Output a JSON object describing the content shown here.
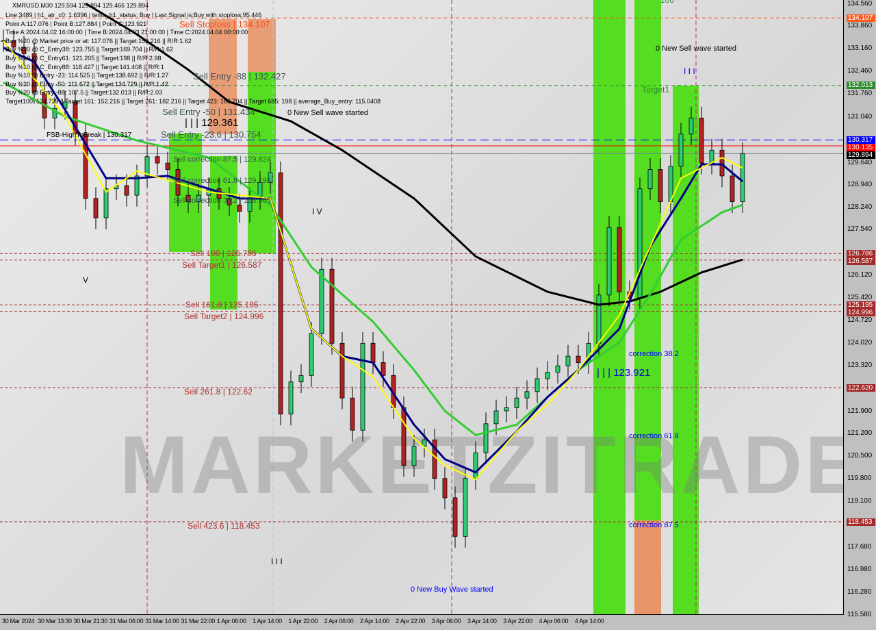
{
  "header": {
    "title": "XMRUSD,M30  129.594 129.894 129.466 129.894",
    "lines": [
      "Line:3489 | h1_atr_c0: 1.6396 | tema_h1_status: Buy | Last Signal is:Buy with stoploss:95.446",
      "Point A:117.076 | Point B:127.884 | Point C:123.921",
      "Time A:2024.04.02 16:00:00 | Time B:2024.04.03 21:00:00 | Time C:2024.04.04 00:00:00",
      "Buy %20 @ Market price or at: 117.076 || Target:152.216 || R/R:1.62",
      "Buy %10 @ C_Entry38: 123.755 || Target:169.704 || R/R:1.62",
      "Buy %10 @ C_Entry61: 121.205 || Target:198 || R/R:2.98",
      "Buy %10 @ C_Entry88: 118.427 || Target:141.408 || R/R:1",
      "Buy %10 @ Entry -23: 114.525 || Target:138.692 || R/R:1.27",
      "Buy %20 @ Entry -50: 111.672 || Target:134.729 || R/R:1.42",
      "Buy %20 @ Entry -88: 107.5 || Target:132.013 || R/R:2.03",
      "Target100: 134.729 || Target 161: 152.216 || Target 261: 182.216 || Target 423: 169.704 || Target 685: 198 || average_Buy_entry: 115.0408"
    ]
  },
  "annotations": {
    "sell_stoploss": "Sell Stoploss | 134.107",
    "sell_entry_88": "Sell Entry -88 | 132.427",
    "sell_entry_50": "Sell Entry -50 | 131.434",
    "sell_entry_23": "Sell Entry -23.6 | 130.754",
    "point_129": "| | | 129.361",
    "fsb": "FSB-HighToBreak | 130.317",
    "sell_corr_875": "Sell correction 87.5 | 129.824",
    "sell_corr_618": "Sell correction 61.8 | 129.193",
    "sell_corr_382": "Sell correction 38.2 | 128.565",
    "sell_100": "Sell 100 | 126.786",
    "sell_target1": "Sell Target1 | 126.587",
    "sell_1618": "Sell 161.8 | 125.195",
    "sell_target2": "Sell Target2 | 124.996",
    "sell_2618": "Sell 261.8 | 122.62",
    "sell_4236": "Sell 423.6 | 118.453",
    "new_sell_left": "0 New Sell wave started",
    "new_sell_right": "0 New Sell wave started",
    "new_buy": "0 New Buy Wave started",
    "target1": "Target1",
    "t100": "100",
    "point_123": "| | | 123.921",
    "corr_382": "correction 38.2",
    "corr_618": "correction 61.8",
    "corr_875": "correction 87.5",
    "wave_iv": "I V",
    "wave_v": "V",
    "wave_iii": "I I I",
    "wave_iii_b": "I I I",
    "watermark": "MARKETZITRADE"
  },
  "price_axis": {
    "ticks": [
      "134.560",
      "133.860",
      "133.160",
      "132.460",
      "131.760",
      "131.040",
      "129.640",
      "128.940",
      "128.240",
      "127.540",
      "126.120",
      "125.420",
      "124.720",
      "124.020",
      "123.320",
      "121.900",
      "121.200",
      "120.500",
      "119.800",
      "119.100",
      "117.680",
      "116.980",
      "116.280",
      "115.580"
    ],
    "tags": [
      {
        "value": "134.107",
        "color": "#ff5a1f"
      },
      {
        "value": "132.013",
        "color": "#2e8b2e"
      },
      {
        "value": "130.317",
        "color": "#0000ff"
      },
      {
        "value": "130.135",
        "color": "#ff0000"
      },
      {
        "value": "129.894",
        "color": "#000000"
      },
      {
        "value": "126.786",
        "color": "#a52a2a"
      },
      {
        "value": "126.587",
        "color": "#a52a2a"
      },
      {
        "value": "125.195",
        "color": "#a52a2a"
      },
      {
        "value": "124.996",
        "color": "#a52a2a"
      },
      {
        "value": "122.620",
        "color": "#a52a2a"
      },
      {
        "value": "118.453",
        "color": "#a52a2a"
      }
    ]
  },
  "time_axis": [
    "30 Mar 2024",
    "30 Mar 13:30",
    "30 Mar 21:30",
    "31 Mar 06:00",
    "31 Mar 14:00",
    "31 Mar 22:00",
    "1 Apr 06:00",
    "1 Apr 14:00",
    "1 Apr 22:00",
    "2 Apr 06:00",
    "2 Apr 14:00",
    "2 Apr 22:00",
    "3 Apr 06:00",
    "3 Apr 14:00",
    "3 Apr 22:00",
    "4 Apr 06:00",
    "4 Apr 14:00"
  ],
  "chart_data": {
    "type": "candlestick",
    "symbol": "XMRUSD",
    "timeframe": "M30",
    "ylim": [
      115.58,
      134.56
    ],
    "close": [
      133.4,
      133.2,
      133.0,
      131.8,
      131.0,
      131.3,
      131.5,
      130.5,
      128.5,
      127.9,
      128.8,
      128.9,
      128.6,
      129.2,
      129.8,
      129.6,
      129.4,
      128.6,
      128.4,
      128.6,
      128.8,
      128.5,
      128.3,
      128.1,
      128.5,
      129.0,
      129.3,
      121.8,
      122.8,
      123.0,
      124.3,
      126.3,
      124.0,
      122.3,
      121.3,
      124.0,
      123.4,
      123.0,
      122.0,
      120.2,
      120.8,
      121.0,
      119.8,
      119.2,
      118.0,
      119.8,
      120.6,
      121.5,
      121.9,
      122.0,
      122.3,
      122.5,
      122.9,
      123.1,
      123.3,
      123.6,
      123.4,
      124.0,
      125.5,
      127.6,
      125.6,
      125.4,
      128.8,
      129.4,
      128.4,
      129.5,
      130.5,
      131.0,
      129.6,
      130.0,
      129.2,
      128.4,
      129.894
    ],
    "moving_averages": [
      {
        "color": "#000000",
        "points": [
          [
            8,
            134.56
          ],
          [
            13,
            133.6
          ],
          [
            18,
            132.5
          ],
          [
            22,
            131.5
          ],
          [
            28,
            130.9
          ],
          [
            33,
            130.0
          ],
          [
            40,
            128.5
          ],
          [
            46,
            126.7
          ],
          [
            53,
            125.6
          ],
          [
            58,
            125.2
          ],
          [
            61,
            125.3
          ],
          [
            64,
            125.6
          ],
          [
            68,
            126.2
          ],
          [
            72,
            126.6
          ]
        ]
      },
      {
        "color": "#33cc33",
        "points": [
          [
            0,
            132.1
          ],
          [
            6,
            131.05
          ],
          [
            13,
            130.3
          ],
          [
            20,
            129.77
          ],
          [
            26,
            128.3
          ],
          [
            30,
            126.37
          ],
          [
            33,
            125.52
          ],
          [
            36,
            124.67
          ],
          [
            40,
            123.17
          ],
          [
            43,
            121.9
          ],
          [
            46,
            121.15
          ],
          [
            50,
            121.47
          ],
          [
            53,
            122.33
          ],
          [
            56,
            123.17
          ],
          [
            60,
            124.03
          ],
          [
            63,
            125.52
          ],
          [
            66,
            127.22
          ],
          [
            70,
            128.07
          ],
          [
            72,
            128.3
          ]
        ]
      },
      {
        "color": "#000080",
        "points": [
          [
            0,
            133.18
          ],
          [
            3,
            132.75
          ],
          [
            6,
            131.26
          ],
          [
            10,
            129.13
          ],
          [
            13,
            129.13
          ],
          [
            16,
            129.2
          ],
          [
            20,
            128.8
          ],
          [
            23,
            128.5
          ],
          [
            26,
            128.5
          ],
          [
            30,
            124.45
          ],
          [
            33,
            123.6
          ],
          [
            36,
            123.4
          ],
          [
            40,
            121.47
          ],
          [
            43,
            120.4
          ],
          [
            46,
            119.99
          ],
          [
            50,
            121.26
          ],
          [
            53,
            122.33
          ],
          [
            56,
            123.17
          ],
          [
            60,
            124.45
          ],
          [
            63,
            127.0
          ],
          [
            66,
            128.5
          ],
          [
            68,
            129.56
          ],
          [
            70,
            129.56
          ],
          [
            72,
            129.03
          ]
        ]
      },
      {
        "color": "#ffff00",
        "points": [
          [
            0,
            133.39
          ],
          [
            6,
            131.05
          ],
          [
            10,
            128.7
          ],
          [
            13,
            129.35
          ],
          [
            20,
            128.7
          ],
          [
            26,
            128.5
          ],
          [
            30,
            124.45
          ],
          [
            33,
            123.6
          ],
          [
            36,
            122.96
          ],
          [
            40,
            121.05
          ],
          [
            43,
            120.2
          ],
          [
            46,
            119.77
          ],
          [
            50,
            121.26
          ],
          [
            53,
            122.1
          ],
          [
            56,
            123.17
          ],
          [
            60,
            124.87
          ],
          [
            63,
            127.0
          ],
          [
            66,
            129.13
          ],
          [
            70,
            129.77
          ],
          [
            72,
            129.45
          ]
        ]
      }
    ]
  }
}
